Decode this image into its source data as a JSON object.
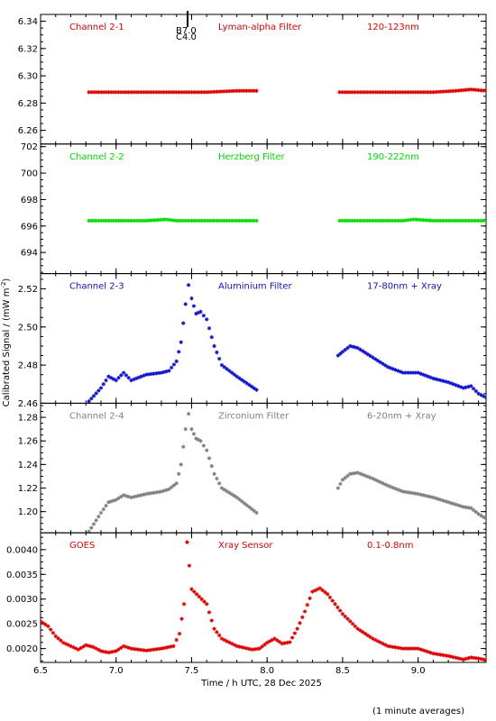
{
  "figure": {
    "xlabel": "Time / h UTC, 28 Dec 2025",
    "ylabel": "Calibrated Signal / (mW m",
    "ylabel_sup": "-2",
    "ylabel_close": ")",
    "footnote": "(1 minute averages)",
    "xticks": [
      6.5,
      7.0,
      7.5,
      8.0,
      8.5,
      9.0
    ],
    "xtick_labels": [
      "6.5",
      "7.0",
      "7.5",
      "8.0",
      "8.5",
      "9.0"
    ],
    "xlim": [
      6.5,
      9.45
    ],
    "marker_labels": [
      "B7.0",
      "C4.0"
    ]
  },
  "chart_data": [
    {
      "type": "scatter",
      "title": "Channel 2-1",
      "filter": "Lyman-alpha Filter",
      "band": "120-123nm",
      "color": "#e00000",
      "ylim": [
        6.25,
        6.345
      ],
      "yticks": [
        6.26,
        6.28,
        6.3,
        6.32,
        6.34
      ],
      "ytick_labels": [
        "6.26",
        "6.28",
        "6.30",
        "6.32",
        "6.34"
      ],
      "segments": [
        {
          "x": [
            6.82,
            7.0,
            7.2,
            7.4,
            7.6,
            7.8,
            7.93
          ],
          "y": [
            6.288,
            6.288,
            6.288,
            6.288,
            6.288,
            6.289,
            6.289
          ]
        },
        {
          "x": [
            8.48,
            8.7,
            8.9,
            9.1,
            9.25,
            9.35,
            9.45
          ],
          "y": [
            6.288,
            6.288,
            6.288,
            6.288,
            6.289,
            6.29,
            6.289
          ]
        }
      ]
    },
    {
      "type": "scatter",
      "title": "Channel 2-2",
      "filter": "Herzberg Filter",
      "band": "190-222nm",
      "color": "#00dd00",
      "ylim": [
        692.4,
        702.2
      ],
      "yticks": [
        694,
        696,
        698,
        700,
        702
      ],
      "ytick_labels": [
        "694",
        "696",
        "698",
        "700",
        "702"
      ],
      "segments": [
        {
          "x": [
            6.82,
            7.0,
            7.2,
            7.33,
            7.4,
            7.6,
            7.8,
            7.93
          ],
          "y": [
            696.4,
            696.4,
            696.4,
            696.5,
            696.4,
            696.4,
            696.4,
            696.4
          ]
        },
        {
          "x": [
            8.48,
            8.7,
            8.9,
            8.97,
            9.1,
            9.3,
            9.45
          ],
          "y": [
            696.4,
            696.4,
            696.4,
            696.5,
            696.4,
            696.4,
            696.4
          ]
        }
      ]
    },
    {
      "type": "scatter",
      "title": "Channel 2-3",
      "filter": "Aluminium Filter",
      "band": "17-80nm + Xray",
      "color": "#1010d0",
      "ylim": [
        2.46,
        2.528
      ],
      "yticks": [
        2.46,
        2.48,
        2.5,
        2.52
      ],
      "ytick_labels": [
        "2.46",
        "2.48",
        "2.50",
        "2.52"
      ],
      "segments": [
        {
          "x": [
            6.82,
            6.9,
            6.95,
            7.0,
            7.05,
            7.1,
            7.2,
            7.3,
            7.35,
            7.4,
            7.43,
            7.46,
            7.48,
            7.5,
            7.53,
            7.56,
            7.6,
            7.65,
            7.7,
            7.8,
            7.93
          ],
          "y": [
            2.461,
            2.468,
            2.474,
            2.472,
            2.476,
            2.472,
            2.475,
            2.476,
            2.477,
            2.482,
            2.492,
            2.512,
            2.522,
            2.515,
            2.507,
            2.508,
            2.504,
            2.49,
            2.48,
            2.474,
            2.467
          ]
        },
        {
          "x": [
            8.47,
            8.5,
            8.55,
            8.6,
            8.7,
            8.8,
            8.9,
            9.0,
            9.1,
            9.2,
            9.3,
            9.35,
            9.4,
            9.45
          ],
          "y": [
            2.485,
            2.487,
            2.49,
            2.489,
            2.484,
            2.479,
            2.476,
            2.476,
            2.473,
            2.471,
            2.468,
            2.469,
            2.465,
            2.463
          ]
        }
      ]
    },
    {
      "type": "scatter",
      "title": "Channel 2-4",
      "filter": "Zirconium Filter",
      "band": "6-20nm + Xray",
      "color": "#808080",
      "ylim": [
        1.182,
        1.292
      ],
      "yticks": [
        1.2,
        1.22,
        1.24,
        1.26,
        1.28
      ],
      "ytick_labels": [
        "1.20",
        "1.22",
        "1.24",
        "1.26",
        "1.28"
      ],
      "segments": [
        {
          "x": [
            6.82,
            6.9,
            6.95,
            7.0,
            7.05,
            7.1,
            7.2,
            7.3,
            7.35,
            7.4,
            7.43,
            7.46,
            7.48,
            7.5,
            7.53,
            7.56,
            7.6,
            7.65,
            7.7,
            7.8,
            7.93
          ],
          "y": [
            1.183,
            1.199,
            1.208,
            1.21,
            1.214,
            1.212,
            1.215,
            1.217,
            1.219,
            1.224,
            1.24,
            1.27,
            1.283,
            1.27,
            1.262,
            1.26,
            1.252,
            1.232,
            1.22,
            1.212,
            1.199
          ]
        },
        {
          "x": [
            8.47,
            8.5,
            8.55,
            8.6,
            8.7,
            8.8,
            8.9,
            9.0,
            9.1,
            9.2,
            9.3,
            9.35,
            9.4,
            9.45
          ],
          "y": [
            1.22,
            1.227,
            1.232,
            1.233,
            1.228,
            1.222,
            1.217,
            1.215,
            1.212,
            1.208,
            1.204,
            1.203,
            1.198,
            1.194
          ]
        }
      ]
    },
    {
      "type": "scatter",
      "title": "GOES",
      "filter": "Xray Sensor",
      "band": "0.1-0.8nm",
      "color": "#e00000",
      "ylim": [
        0.00172,
        0.00434
      ],
      "yticks": [
        0.002,
        0.0025,
        0.003,
        0.0035,
        0.004
      ],
      "ytick_labels": [
        "0.0020",
        "0.0025",
        "0.0030",
        "0.0035",
        "0.0040"
      ],
      "segments": [
        {
          "x": [
            6.5,
            6.55,
            6.6,
            6.65,
            6.7,
            6.75,
            6.8,
            6.85,
            6.9,
            6.95,
            7.0,
            7.05,
            7.1,
            7.15,
            7.2,
            7.3,
            7.38,
            7.42,
            7.45,
            7.47,
            7.5,
            7.55,
            7.6,
            7.65,
            7.7,
            7.8,
            7.9,
            7.95,
            8.0,
            8.05,
            8.1,
            8.15,
            8.2,
            8.25,
            8.3,
            8.35,
            8.4,
            8.45,
            8.5,
            8.6,
            8.7,
            8.8,
            8.9,
            9.0,
            9.1,
            9.2,
            9.3,
            9.35,
            9.4,
            9.45
          ],
          "y": [
            0.00255,
            0.00245,
            0.00225,
            0.00212,
            0.00205,
            0.00198,
            0.00207,
            0.00203,
            0.00195,
            0.00192,
            0.00195,
            0.00205,
            0.002,
            0.00198,
            0.00196,
            0.002,
            0.00205,
            0.0023,
            0.0029,
            0.00415,
            0.0032,
            0.00305,
            0.0029,
            0.0024,
            0.0022,
            0.00205,
            0.00198,
            0.002,
            0.00212,
            0.0022,
            0.0021,
            0.00213,
            0.0024,
            0.00275,
            0.00315,
            0.00322,
            0.0031,
            0.0029,
            0.0027,
            0.0024,
            0.0022,
            0.00205,
            0.002,
            0.002,
            0.0019,
            0.00185,
            0.00178,
            0.00182,
            0.0018,
            0.00177
          ]
        }
      ]
    }
  ]
}
